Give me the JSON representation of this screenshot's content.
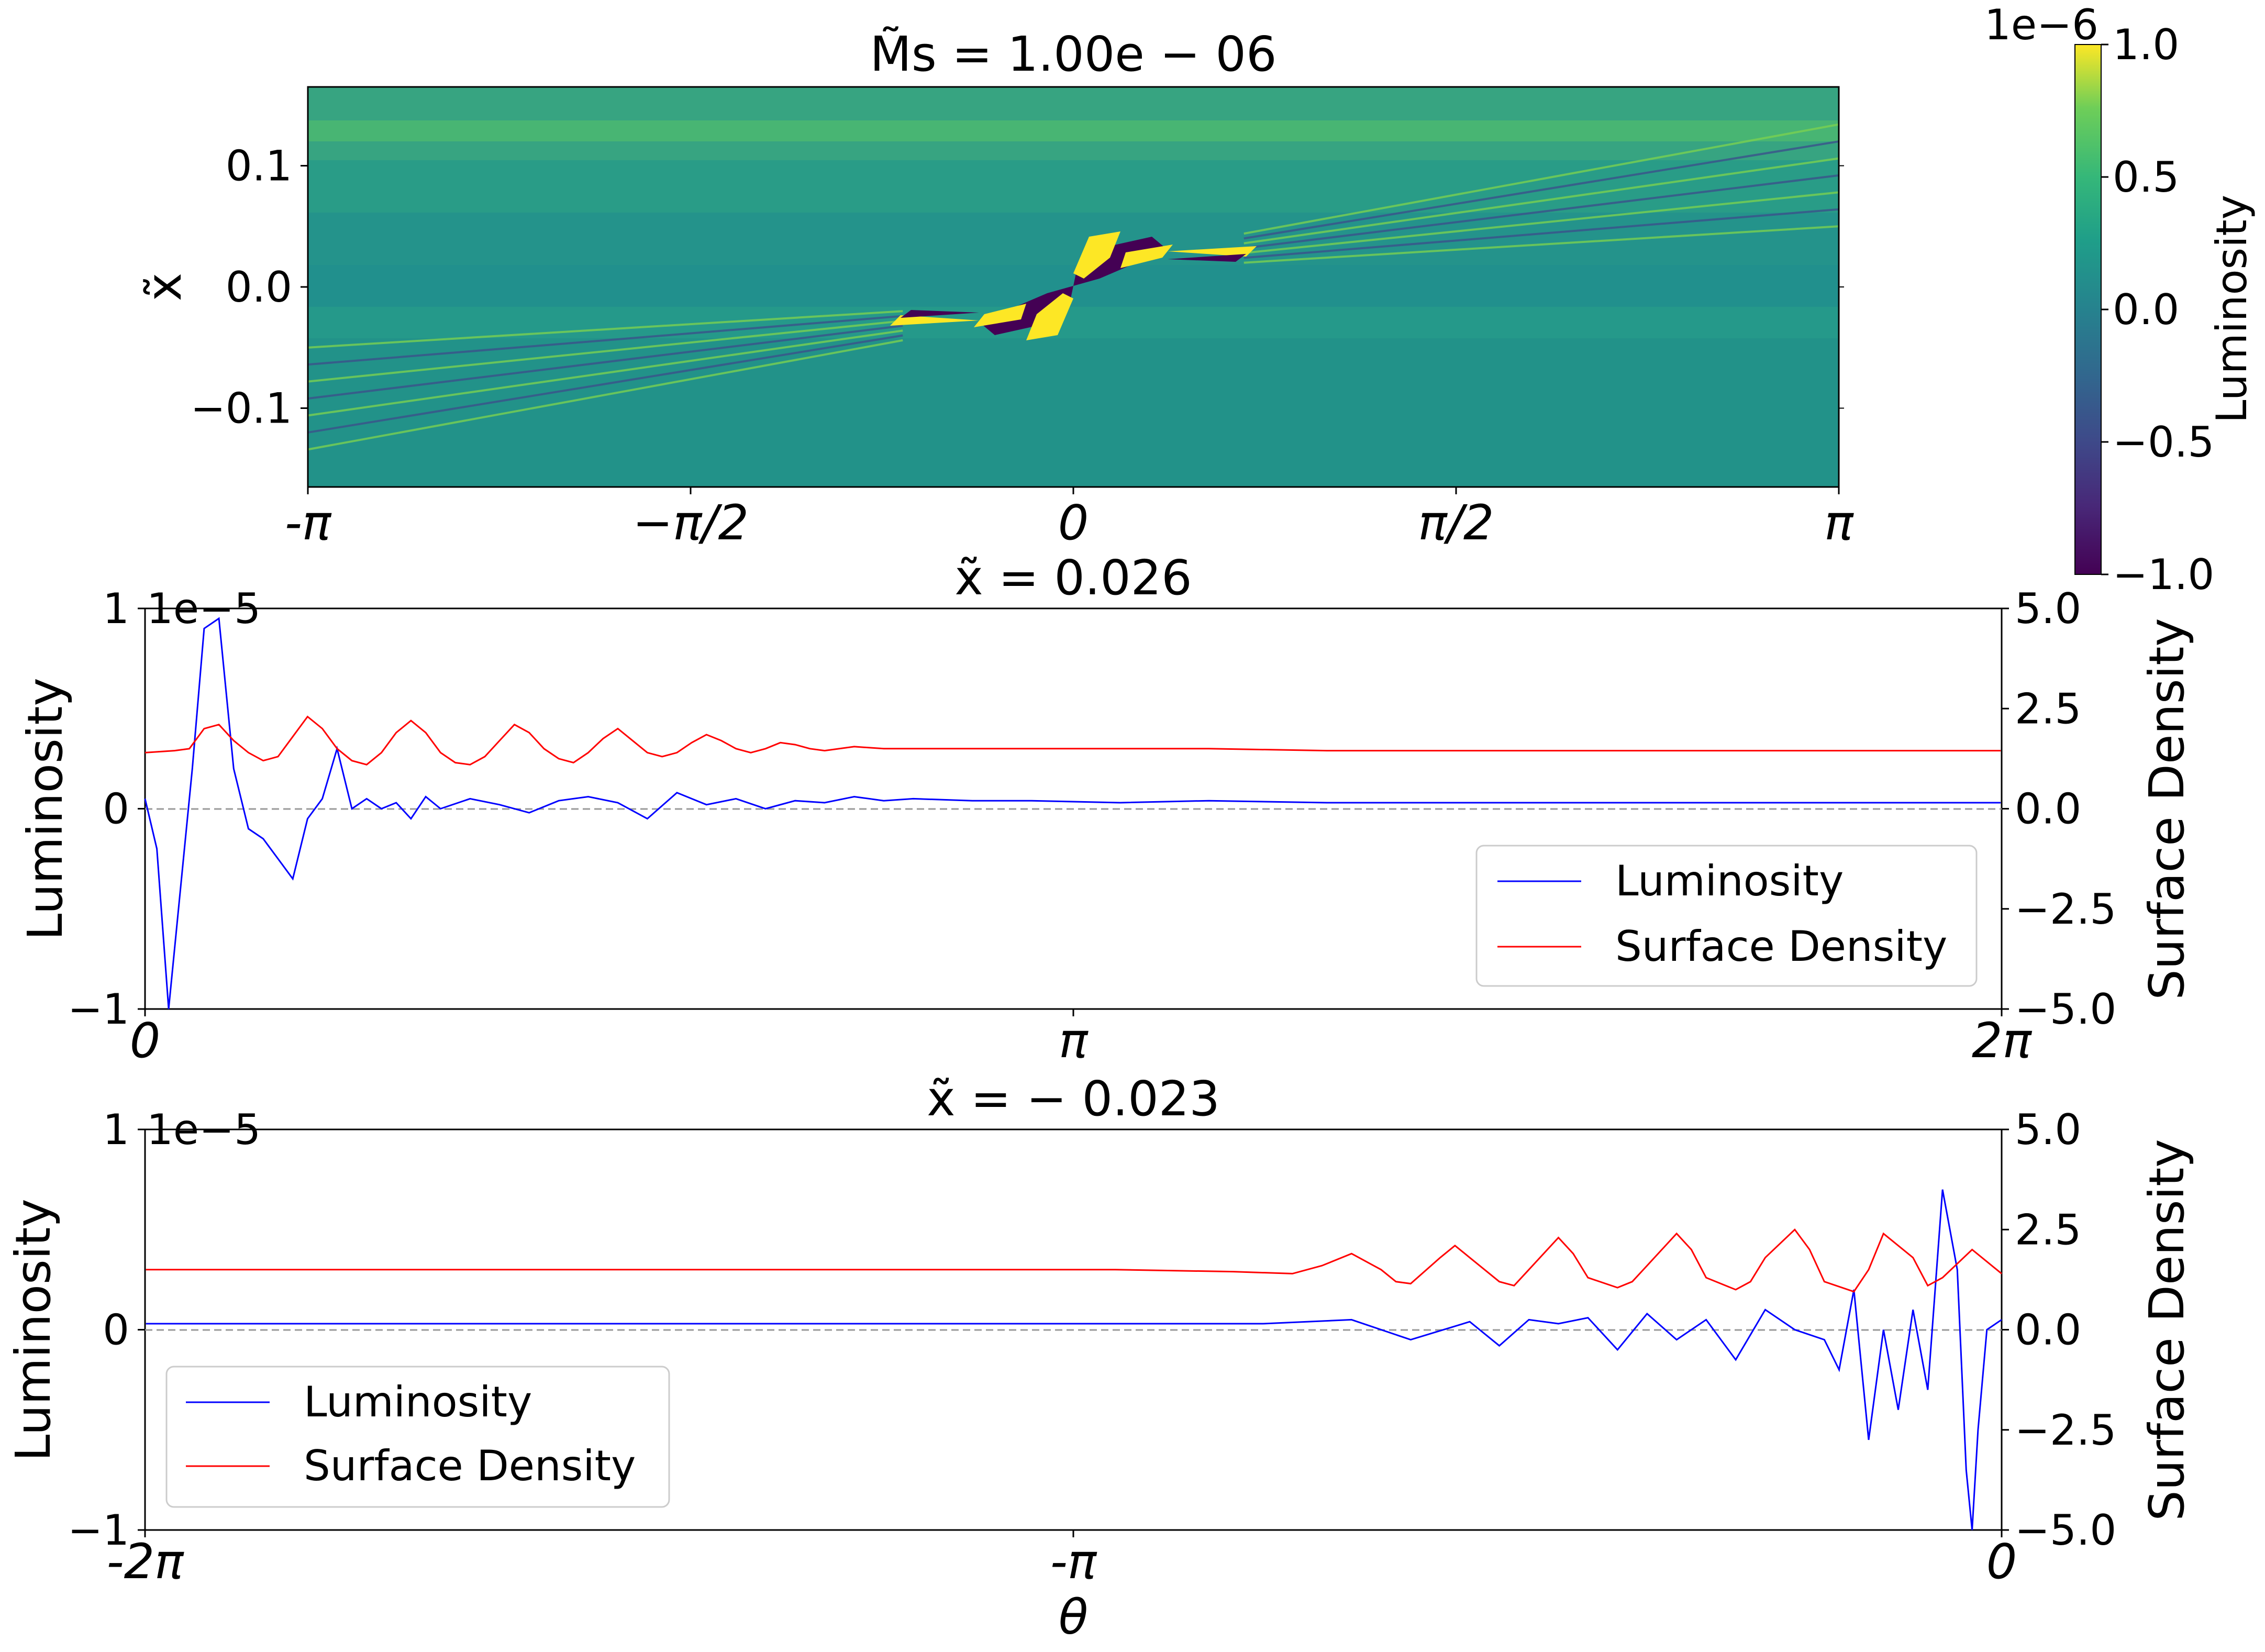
{
  "chart_data": [
    {
      "type": "heatmap",
      "title": "M̃s = 1.00e − 06",
      "ylabel": "x̃",
      "xlabel": "",
      "x_ticks": [
        "-π",
        "−π/2",
        "0",
        "π/2",
        "π"
      ],
      "x_range": [
        -3.14159,
        3.14159
      ],
      "y_ticks": [
        "0.1",
        "0.0",
        "−0.1"
      ],
      "y_tick_values": [
        0.1,
        0.0,
        -0.1
      ],
      "y_range": [
        -0.165,
        0.165
      ],
      "colormap": "viridis",
      "colorbar": {
        "label": "Luminosity",
        "offset_text": "1e−6",
        "ticks": [
          "1.0",
          "0.5",
          "0.0",
          "−0.5",
          "−1.0"
        ],
        "tick_values": [
          1.0,
          0.5,
          0.0,
          -0.5,
          -1.0
        ],
        "range": [
          -1.0,
          1.0
        ]
      },
      "features": {
        "background_value": 0.05,
        "spiral_wake_slope": 0.026
      }
    },
    {
      "type": "line",
      "title": "x̃ = 0.026",
      "xlabel": "",
      "ylabel": "Luminosity",
      "y2label": "Surface Density",
      "x_ticks": [
        "0",
        "π",
        "2π"
      ],
      "x_range": [
        0,
        6.2832
      ],
      "y_ticks": [
        "−1",
        "0",
        "1"
      ],
      "y_offset_text": "1e−5",
      "ylim": [
        -1,
        1
      ],
      "y2_ticks": [
        "5.0",
        "2.5",
        "0.0",
        "−2.5",
        "−5.0"
      ],
      "y2lim": [
        -5,
        5
      ],
      "legend": "lower-right",
      "series": [
        {
          "name": "Luminosity",
          "color": "#0000ff",
          "axis": "left",
          "x": [
            0,
            0.04,
            0.08,
            0.12,
            0.16,
            0.2,
            0.25,
            0.3,
            0.35,
            0.4,
            0.45,
            0.5,
            0.55,
            0.6,
            0.65,
            0.7,
            0.75,
            0.8,
            0.85,
            0.9,
            0.95,
            1.0,
            1.1,
            1.2,
            1.3,
            1.4,
            1.5,
            1.6,
            1.7,
            1.8,
            1.9,
            2.0,
            2.1,
            2.2,
            2.3,
            2.4,
            2.5,
            2.6,
            2.8,
            3.0,
            3.3,
            3.6,
            4.0,
            4.5,
            5.0,
            5.5,
            6.0,
            6.28
          ],
          "values": [
            0.05,
            -0.2,
            -1.0,
            -0.4,
            0.2,
            0.9,
            0.95,
            0.2,
            -0.1,
            -0.15,
            -0.25,
            -0.35,
            -0.05,
            0.05,
            0.3,
            0.0,
            0.05,
            0.0,
            0.03,
            -0.05,
            0.06,
            0.0,
            0.05,
            0.02,
            -0.02,
            0.04,
            0.06,
            0.03,
            -0.05,
            0.08,
            0.02,
            0.05,
            0.0,
            0.04,
            0.03,
            0.06,
            0.04,
            0.05,
            0.04,
            0.04,
            0.03,
            0.04,
            0.03,
            0.03,
            0.03,
            0.03,
            0.03,
            0.03
          ]
        },
        {
          "name": "Surface Density",
          "color": "#ff0000",
          "axis": "right",
          "x": [
            0,
            0.1,
            0.15,
            0.2,
            0.25,
            0.3,
            0.35,
            0.4,
            0.45,
            0.5,
            0.55,
            0.6,
            0.65,
            0.7,
            0.75,
            0.8,
            0.85,
            0.9,
            0.95,
            1.0,
            1.05,
            1.1,
            1.15,
            1.2,
            1.25,
            1.3,
            1.35,
            1.4,
            1.45,
            1.5,
            1.55,
            1.6,
            1.65,
            1.7,
            1.75,
            1.8,
            1.85,
            1.9,
            1.95,
            2.0,
            2.05,
            2.1,
            2.15,
            2.2,
            2.25,
            2.3,
            2.4,
            2.5,
            2.6,
            2.8,
            3.0,
            3.3,
            3.6,
            4.0,
            4.5,
            5.0,
            5.5,
            6.0,
            6.28
          ],
          "values": [
            1.4,
            1.45,
            1.5,
            2.0,
            2.1,
            1.7,
            1.4,
            1.2,
            1.3,
            1.8,
            2.3,
            2.0,
            1.5,
            1.2,
            1.1,
            1.4,
            1.9,
            2.2,
            1.9,
            1.4,
            1.15,
            1.1,
            1.3,
            1.7,
            2.1,
            1.9,
            1.5,
            1.25,
            1.15,
            1.4,
            1.75,
            2.0,
            1.7,
            1.4,
            1.3,
            1.4,
            1.65,
            1.85,
            1.7,
            1.5,
            1.4,
            1.5,
            1.65,
            1.6,
            1.5,
            1.45,
            1.55,
            1.5,
            1.5,
            1.5,
            1.5,
            1.5,
            1.5,
            1.45,
            1.45,
            1.45,
            1.45,
            1.45,
            1.45
          ]
        }
      ]
    },
    {
      "type": "line",
      "title": "x̃ = − 0.023",
      "xlabel": "θ",
      "ylabel": "Luminosity",
      "y2label": "Surface Density",
      "x_ticks": [
        "-2π",
        "-π",
        "0"
      ],
      "x_range": [
        -6.2832,
        0
      ],
      "y_ticks": [
        "−1",
        "0",
        "1"
      ],
      "y_offset_text": "1e−5",
      "ylim": [
        -1,
        1
      ],
      "y2_ticks": [
        "5.0",
        "2.5",
        "0.0",
        "−2.5",
        "−5.0"
      ],
      "y2lim": [
        -5,
        5
      ],
      "legend": "lower-left",
      "series": [
        {
          "name": "Luminosity",
          "color": "#0000ff",
          "axis": "left",
          "x": [
            -6.28,
            -5.5,
            -5.0,
            -4.5,
            -4.0,
            -3.5,
            -3.0,
            -2.5,
            -2.2,
            -2.0,
            -1.8,
            -1.7,
            -1.6,
            -1.5,
            -1.4,
            -1.3,
            -1.2,
            -1.1,
            -1.0,
            -0.9,
            -0.8,
            -0.7,
            -0.6,
            -0.55,
            -0.5,
            -0.45,
            -0.4,
            -0.35,
            -0.3,
            -0.25,
            -0.2,
            -0.15,
            -0.12,
            -0.1,
            -0.08,
            -0.05,
            0
          ],
          "values": [
            0.03,
            0.03,
            0.03,
            0.03,
            0.03,
            0.03,
            0.03,
            0.03,
            0.05,
            -0.05,
            0.04,
            -0.08,
            0.05,
            0.03,
            0.06,
            -0.1,
            0.08,
            -0.05,
            0.05,
            -0.15,
            0.1,
            0.0,
            -0.05,
            -0.2,
            0.2,
            -0.55,
            0.0,
            -0.4,
            0.1,
            -0.3,
            0.7,
            0.3,
            -0.7,
            -1.0,
            -0.5,
            0.0,
            0.05
          ]
        },
        {
          "name": "Surface Density",
          "color": "#ff0000",
          "axis": "right",
          "x": [
            -6.28,
            -5.5,
            -5.0,
            -4.5,
            -4.0,
            -3.5,
            -3.0,
            -2.6,
            -2.4,
            -2.3,
            -2.2,
            -2.1,
            -2.05,
            -2.0,
            -1.9,
            -1.85,
            -1.8,
            -1.7,
            -1.65,
            -1.6,
            -1.5,
            -1.45,
            -1.4,
            -1.3,
            -1.25,
            -1.2,
            -1.1,
            -1.05,
            -1.0,
            -0.9,
            -0.85,
            -0.8,
            -0.7,
            -0.65,
            -0.6,
            -0.5,
            -0.45,
            -0.4,
            -0.3,
            -0.25,
            -0.2,
            -0.1,
            0
          ],
          "values": [
            1.5,
            1.5,
            1.5,
            1.5,
            1.5,
            1.5,
            1.5,
            1.45,
            1.4,
            1.6,
            1.9,
            1.5,
            1.2,
            1.15,
            1.8,
            2.1,
            1.8,
            1.2,
            1.1,
            1.5,
            2.3,
            1.9,
            1.3,
            1.05,
            1.2,
            1.6,
            2.4,
            2.0,
            1.3,
            1.0,
            1.2,
            1.8,
            2.5,
            2.0,
            1.2,
            0.95,
            1.5,
            2.4,
            1.8,
            1.1,
            1.3,
            2.0,
            1.4
          ]
        }
      ]
    }
  ],
  "legend_labels": {
    "luminosity": "Luminosity",
    "surface_density": "Surface Density"
  }
}
